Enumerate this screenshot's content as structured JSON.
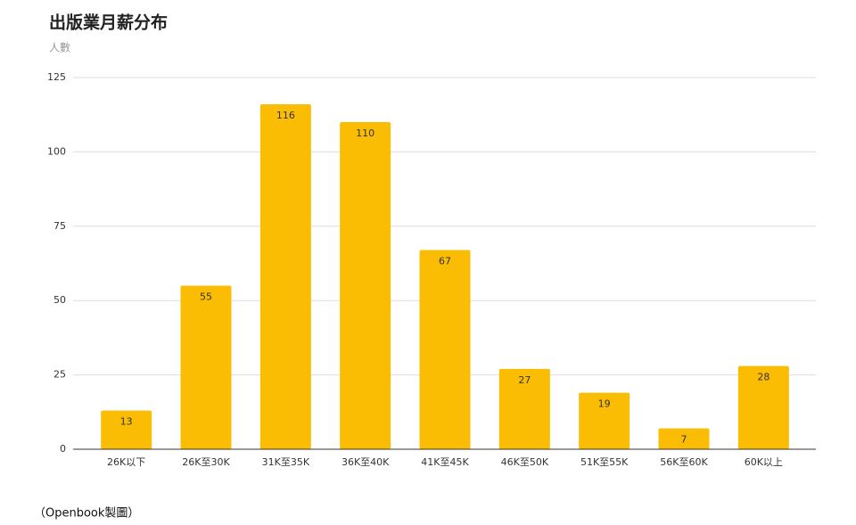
{
  "chart_data": {
    "type": "bar",
    "title": "出版業月薪分布",
    "y_label": "人數",
    "categories": [
      "26K以下",
      "26K至30K",
      "31K至35K",
      "36K至40K",
      "41K至45K",
      "46K至50K",
      "51K至55K",
      "56K至60K",
      "60K以上"
    ],
    "values": [
      13,
      55,
      116,
      110,
      67,
      27,
      19,
      7,
      28
    ],
    "color": "#fbbc04",
    "ylim": [
      0,
      125
    ],
    "yticks": [
      0,
      25,
      50,
      75,
      100,
      125
    ],
    "grid": true,
    "caption": "（Openbook製圖）"
  }
}
